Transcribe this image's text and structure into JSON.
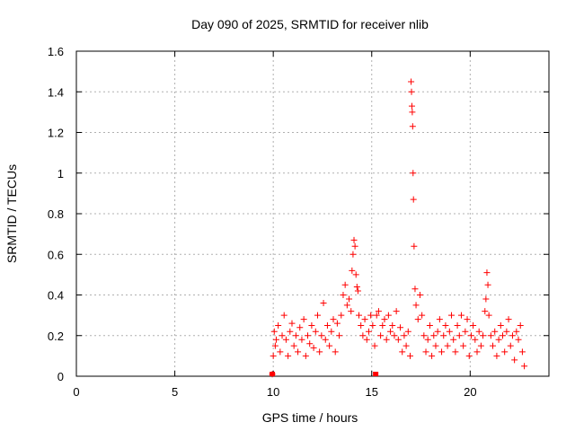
{
  "chart_data": {
    "type": "scatter",
    "title": "Day 090 of 2025, SRMTID for receiver nlib",
    "xlabel": "GPS time / hours",
    "ylabel": "SRMTID / TECUs",
    "xlim": [
      0,
      24
    ],
    "ylim": [
      0,
      1.6
    ],
    "xticks": [
      "0",
      "5",
      "10",
      "15",
      "20"
    ],
    "yticks": [
      "0",
      "0.2",
      "0.4",
      "0.6",
      "0.8",
      "1",
      "1.2",
      "1.4",
      "1.6"
    ],
    "grid": true,
    "marker": "plus",
    "series_color": "#ff0000",
    "series": [
      {
        "name": "SRMTID",
        "x": [
          9.95,
          10.0,
          10.05,
          10.1,
          10.15,
          10.25,
          10.35,
          10.45,
          10.55,
          10.65,
          10.75,
          10.85,
          10.95,
          11.05,
          11.15,
          11.25,
          11.35,
          11.45,
          11.55,
          11.65,
          11.75,
          11.85,
          11.95,
          12.05,
          12.15,
          12.25,
          12.35,
          12.45,
          12.55,
          12.65,
          12.75,
          12.85,
          12.95,
          13.05,
          13.15,
          13.25,
          13.35,
          13.45,
          13.55,
          13.65,
          13.75,
          13.85,
          13.95,
          14.0,
          14.05,
          14.1,
          14.15,
          14.2,
          14.25,
          14.3,
          14.35,
          14.45,
          14.55,
          14.65,
          14.75,
          14.85,
          14.95,
          15.05,
          15.15,
          15.25,
          15.35,
          15.45,
          15.55,
          15.65,
          15.75,
          15.85,
          15.95,
          16.05,
          16.15,
          16.25,
          16.35,
          16.45,
          16.55,
          16.65,
          16.75,
          16.85,
          16.95,
          17.0,
          17.02,
          17.04,
          17.06,
          17.08,
          17.1,
          17.12,
          17.15,
          17.2,
          17.25,
          17.35,
          17.45,
          17.55,
          17.65,
          17.75,
          17.85,
          17.95,
          18.05,
          18.15,
          18.25,
          18.35,
          18.45,
          18.55,
          18.65,
          18.75,
          18.85,
          18.95,
          19.05,
          19.15,
          19.25,
          19.35,
          19.45,
          19.55,
          19.65,
          19.75,
          19.85,
          19.95,
          20.05,
          20.15,
          20.25,
          20.35,
          20.45,
          20.55,
          20.65,
          20.75,
          20.8,
          20.85,
          20.9,
          20.95,
          21.05,
          21.15,
          21.25,
          21.35,
          21.45,
          21.55,
          21.65,
          21.75,
          21.85,
          21.95,
          22.05,
          22.15,
          22.25,
          22.35,
          22.45,
          22.55,
          22.65,
          22.75
        ],
        "y": [
          0.01,
          0.1,
          0.22,
          0.15,
          0.18,
          0.25,
          0.12,
          0.2,
          0.3,
          0.18,
          0.1,
          0.22,
          0.26,
          0.15,
          0.2,
          0.12,
          0.24,
          0.18,
          0.28,
          0.1,
          0.2,
          0.16,
          0.25,
          0.14,
          0.22,
          0.3,
          0.12,
          0.2,
          0.36,
          0.18,
          0.25,
          0.15,
          0.22,
          0.28,
          0.12,
          0.26,
          0.2,
          0.3,
          0.4,
          0.45,
          0.35,
          0.38,
          0.32,
          0.52,
          0.6,
          0.67,
          0.64,
          0.5,
          0.44,
          0.42,
          0.3,
          0.25,
          0.2,
          0.28,
          0.18,
          0.22,
          0.3,
          0.25,
          0.15,
          0.3,
          0.32,
          0.2,
          0.25,
          0.28,
          0.18,
          0.3,
          0.22,
          0.25,
          0.2,
          0.32,
          0.18,
          0.24,
          0.12,
          0.2,
          0.15,
          0.22,
          0.1,
          1.45,
          1.4,
          1.33,
          1.3,
          1.23,
          1.0,
          0.87,
          0.64,
          0.43,
          0.35,
          0.28,
          0.4,
          0.3,
          0.2,
          0.12,
          0.18,
          0.25,
          0.1,
          0.2,
          0.15,
          0.22,
          0.28,
          0.12,
          0.2,
          0.25,
          0.15,
          0.22,
          0.3,
          0.18,
          0.12,
          0.25,
          0.2,
          0.3,
          0.15,
          0.22,
          0.28,
          0.1,
          0.2,
          0.25,
          0.18,
          0.12,
          0.22,
          0.15,
          0.2,
          0.32,
          0.38,
          0.51,
          0.45,
          0.3,
          0.2,
          0.15,
          0.22,
          0.1,
          0.18,
          0.25,
          0.2,
          0.12,
          0.22,
          0.28,
          0.15,
          0.2,
          0.08,
          0.22,
          0.18,
          0.25,
          0.12,
          0.05
        ]
      }
    ],
    "baseline_markers": {
      "x": [
        9.95,
        15.2
      ],
      "y": [
        0,
        0
      ]
    }
  }
}
